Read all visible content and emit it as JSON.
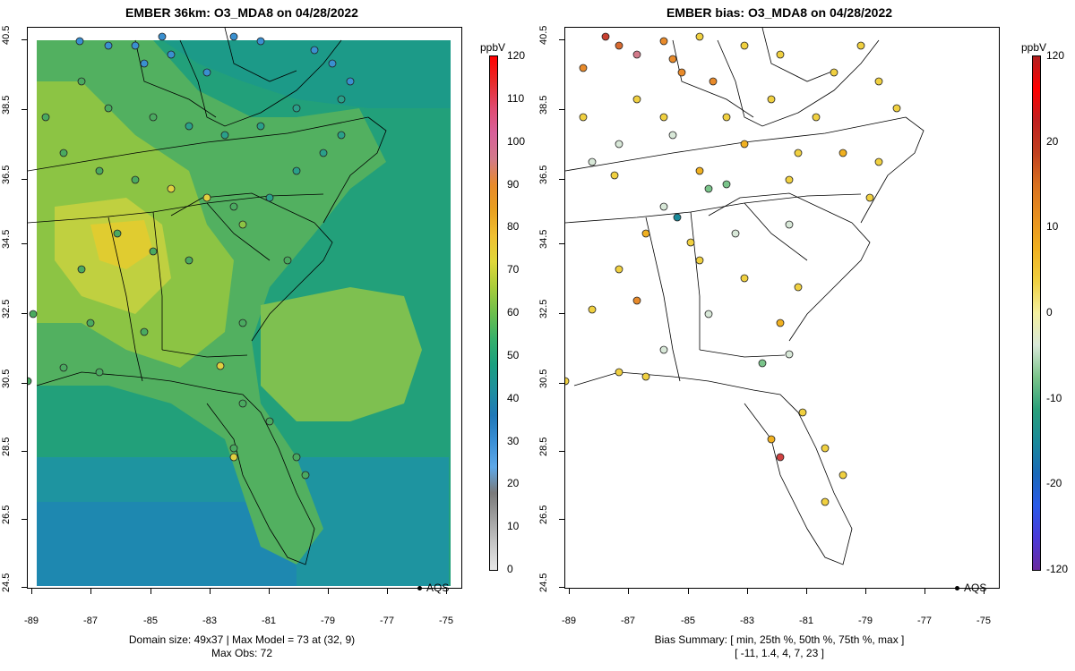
{
  "left_panel": {
    "title": "EMBER 36km: O3_MDA8 on 04/28/2022",
    "footer_line1": "Domain size: 49x37 | Max Model = 73 at (32, 9)",
    "footer_line2": "Max Obs: 72",
    "legend_label": "AQS",
    "colorbar_unit": "ppbV",
    "colorbar_ticks": [
      "120",
      "110",
      "100",
      "90",
      "80",
      "70",
      "60",
      "50",
      "40",
      "30",
      "20",
      "10",
      "0"
    ],
    "colorbar_colors": [
      "#e8e8e8",
      "#c8c8c8",
      "#a0a0a0",
      "#7a7a7a",
      "#5ea8e8",
      "#3a8fd6",
      "#1f78b8",
      "#1e8f9e",
      "#1aa07f",
      "#36b06a",
      "#6cbf4c",
      "#a8cc3a",
      "#e0d83a",
      "#f0c030",
      "#e8a020",
      "#e88a2a",
      "#d27a8a",
      "#d8609a",
      "#e04a70",
      "#e82a2a",
      "#ff0000"
    ]
  },
  "right_panel": {
    "title": "EMBER bias: O3_MDA8 on 04/28/2022",
    "footer_line1": "Bias Summary: [ min, 25th %, 50th %, 75th %, max ]",
    "footer_line2": "[ -11,  1.4,  4,  7,  23 ]",
    "legend_label": "AQS",
    "colorbar_unit": "ppbV",
    "colorbar_ticks": [
      "120",
      "20",
      "10",
      "0",
      "-10",
      "-20",
      "-120"
    ],
    "colorbar_colors": [
      "#6a2aa0",
      "#4a3ad8",
      "#2a5ae8",
      "#1a6ab8",
      "#1a8a9a",
      "#2aa07a",
      "#7ac48a",
      "#d8e8d8",
      "#f4f0a0",
      "#f0d040",
      "#f0b020",
      "#e89020",
      "#d87020",
      "#c04020",
      "#c02020",
      "#ff0000",
      "#b02020"
    ]
  },
  "y_ticks": [
    "40.5",
    "38.5",
    "36.5",
    "34.5",
    "32.5",
    "30.5",
    "28.5",
    "26.5",
    "24.5"
  ],
  "x_ticks": [
    "-89",
    "-87",
    "-85",
    "-83",
    "-81",
    "-79",
    "-77",
    "-75"
  ],
  "map_extent": {
    "lon_min": -89.3,
    "lon_max": -74.5,
    "lat_min": 24.4,
    "lat_max": 40.8
  },
  "colors": {
    "ocean_fill": "#22a07a",
    "land_mid": "#5cb45e",
    "land_high": "#c8d448",
    "land_peak": "#e8d030",
    "ocean_low": "#1e8caa"
  }
}
